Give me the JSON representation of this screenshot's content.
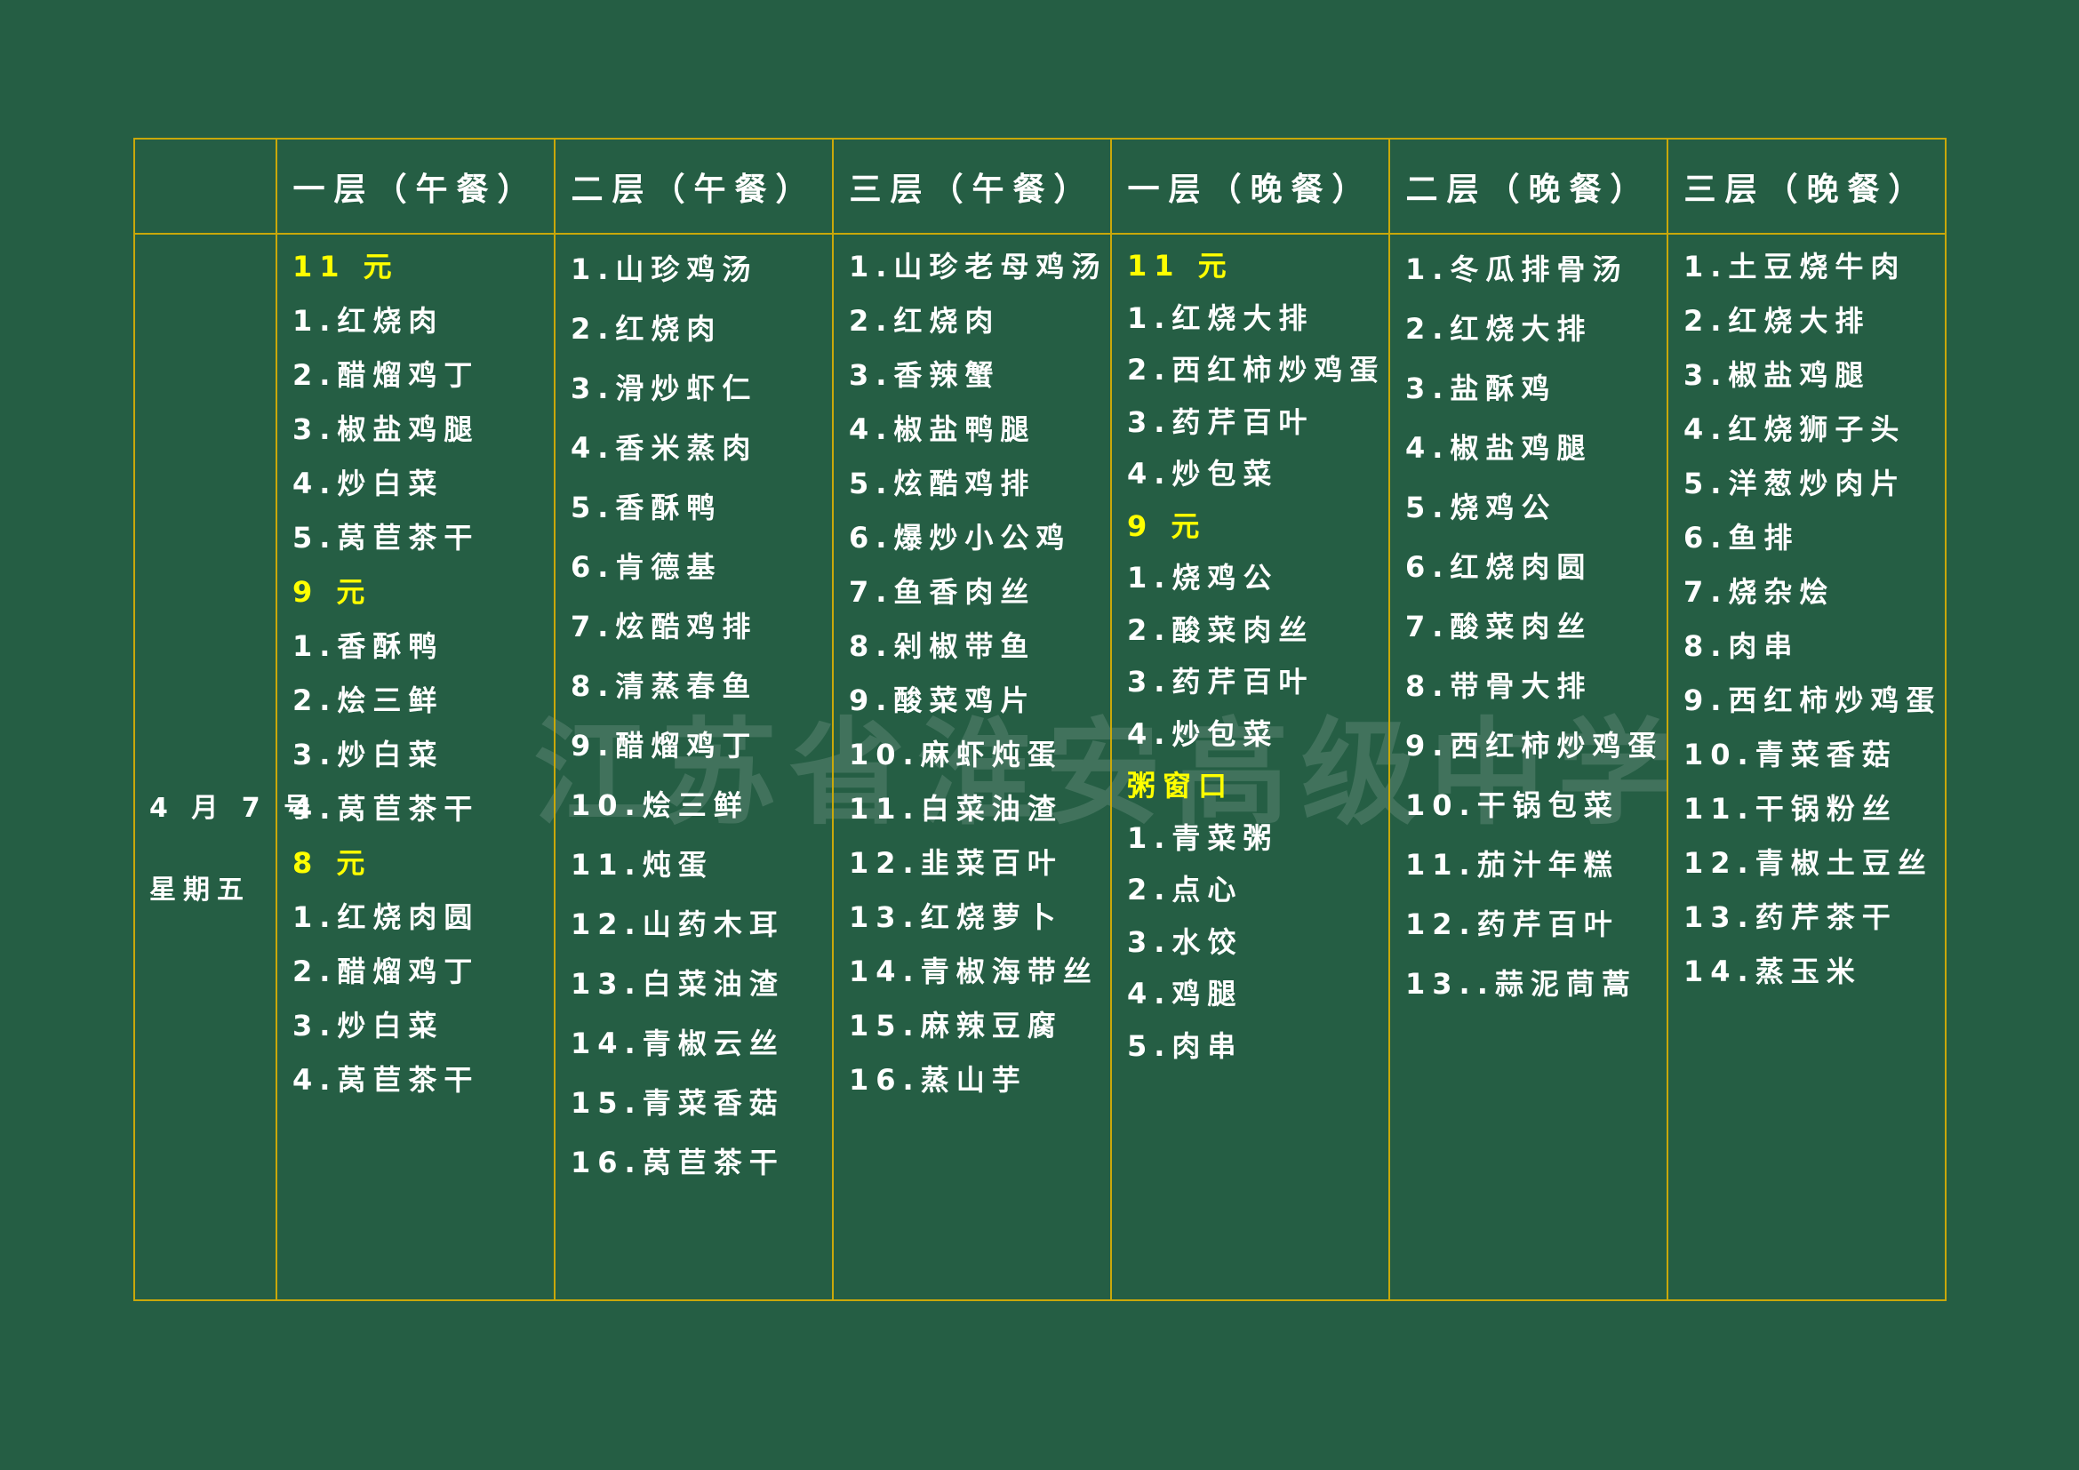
{
  "watermark": "江苏省淮安高级中学",
  "colors": {
    "background": "#255e44",
    "border": "#c9a80a",
    "price": "#ffff00",
    "text": "#ffffff"
  },
  "date": {
    "day": "4 月 7 号",
    "weekday": "星期五"
  },
  "columns": [
    {
      "header": "一层（午餐）",
      "lines": [
        {
          "t": "11 元",
          "price": true
        },
        {
          "t": "1.红烧肉"
        },
        {
          "t": "2.醋熘鸡丁"
        },
        {
          "t": "3.椒盐鸡腿"
        },
        {
          "t": "4.炒白菜"
        },
        {
          "t": "5.莴苣茶干"
        },
        {
          "t": "9 元",
          "price": true
        },
        {
          "t": "1.香酥鸭"
        },
        {
          "t": "2.烩三鲜"
        },
        {
          "t": "3.炒白菜"
        },
        {
          "t": "4.莴苣茶干"
        },
        {
          "t": "8 元",
          "price": true
        },
        {
          "t": "1.红烧肉圆"
        },
        {
          "t": "2.醋熘鸡丁"
        },
        {
          "t": "3.炒白菜"
        },
        {
          "t": "4.莴苣茶干"
        }
      ]
    },
    {
      "header": "二层（午餐）",
      "lines": [
        {
          "t": "1.山珍鸡汤"
        },
        {
          "t": "2.红烧肉"
        },
        {
          "t": "3.滑炒虾仁"
        },
        {
          "t": "4.香米蒸肉"
        },
        {
          "t": "5.香酥鸭"
        },
        {
          "t": "6.肯德基"
        },
        {
          "t": "7.炫酷鸡排"
        },
        {
          "t": "8.清蒸春鱼"
        },
        {
          "t": "9.醋熘鸡丁"
        },
        {
          "t": "10.烩三鲜"
        },
        {
          "t": "11.炖蛋"
        },
        {
          "t": "12.山药木耳"
        },
        {
          "t": "13.白菜油渣"
        },
        {
          "t": "14.青椒云丝"
        },
        {
          "t": "15.青菜香菇"
        },
        {
          "t": "16.莴苣茶干"
        }
      ]
    },
    {
      "header": "三层（午餐）",
      "lines": [
        {
          "t": "1.山珍老母鸡汤"
        },
        {
          "t": "2.红烧肉"
        },
        {
          "t": "3.香辣蟹"
        },
        {
          "t": "4.椒盐鸭腿"
        },
        {
          "t": "5.炫酷鸡排"
        },
        {
          "t": "6.爆炒小公鸡"
        },
        {
          "t": "7.鱼香肉丝"
        },
        {
          "t": "8.剁椒带鱼"
        },
        {
          "t": "9.酸菜鸡片"
        },
        {
          "t": "10.麻虾炖蛋"
        },
        {
          "t": "11.白菜油渣"
        },
        {
          "t": "12.韭菜百叶"
        },
        {
          "t": "13.红烧萝卜"
        },
        {
          "t": "14.青椒海带丝"
        },
        {
          "t": "15.麻辣豆腐"
        },
        {
          "t": "16.蒸山芋"
        }
      ]
    },
    {
      "header": "一层（晚餐）",
      "lines": [
        {
          "t": "11 元",
          "price": true
        },
        {
          "t": "1.红烧大排"
        },
        {
          "t": "2.西红柿炒鸡蛋"
        },
        {
          "t": "3.药芹百叶"
        },
        {
          "t": "4.炒包菜"
        },
        {
          "t": "9 元",
          "price": true
        },
        {
          "t": "1.烧鸡公"
        },
        {
          "t": "2.酸菜肉丝"
        },
        {
          "t": "3.药芹百叶"
        },
        {
          "t": "4.炒包菜"
        },
        {
          "t": "粥窗口",
          "price": true
        },
        {
          "t": "1.青菜粥"
        },
        {
          "t": "2.点心"
        },
        {
          "t": "3.水饺"
        },
        {
          "t": "4.鸡腿"
        },
        {
          "t": "5.肉串"
        }
      ]
    },
    {
      "header": "二层（晚餐）",
      "lines": [
        {
          "t": "1.冬瓜排骨汤"
        },
        {
          "t": "2.红烧大排"
        },
        {
          "t": "3.盐酥鸡"
        },
        {
          "t": "4.椒盐鸡腿"
        },
        {
          "t": "5.烧鸡公"
        },
        {
          "t": "6.红烧肉圆"
        },
        {
          "t": "7.酸菜肉丝"
        },
        {
          "t": "8.带骨大排"
        },
        {
          "t": "9.西红柿炒鸡蛋"
        },
        {
          "t": "10.干锅包菜"
        },
        {
          "t": "11.茄汁年糕"
        },
        {
          "t": "12.药芹百叶"
        },
        {
          "t": "13..蒜泥茼蒿"
        }
      ]
    },
    {
      "header": "三层（晚餐）",
      "lines": [
        {
          "t": "1.土豆烧牛肉"
        },
        {
          "t": "2.红烧大排"
        },
        {
          "t": "3.椒盐鸡腿"
        },
        {
          "t": "4.红烧狮子头"
        },
        {
          "t": "5.洋葱炒肉片"
        },
        {
          "t": "6.鱼排"
        },
        {
          "t": "7.烧杂烩"
        },
        {
          "t": "8.肉串"
        },
        {
          "t": "9.西红柿炒鸡蛋"
        },
        {
          "t": "10.青菜香菇"
        },
        {
          "t": "11.干锅粉丝"
        },
        {
          "t": "12.青椒土豆丝"
        },
        {
          "t": "13.药芹茶干"
        },
        {
          "t": "14.蒸玉米"
        }
      ]
    }
  ]
}
